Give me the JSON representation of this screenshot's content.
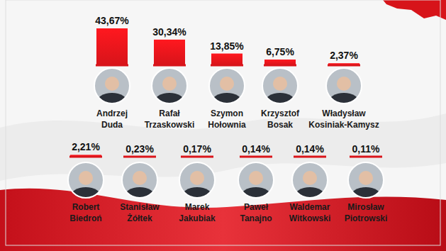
{
  "chart_data": {
    "type": "bar",
    "categories": [
      "Andrzej Duda",
      "Rafał Trzaskowski",
      "Szymon Hołownia",
      "Krzysztof Bosak",
      "Władysław Kosiniak-Kamysz",
      "Robert Biedroń",
      "Stanisław Żółtek",
      "Marek Jakubiak",
      "Paweł Tanajno",
      "Waldemar Witkowski",
      "Mirosław Piotrowski"
    ],
    "values": [
      43.67,
      30.34,
      13.85,
      6.75,
      2.37,
      2.21,
      0.23,
      0.17,
      0.14,
      0.14,
      0.11
    ],
    "value_labels": [
      "43,67%",
      "30,34%",
      "13,85%",
      "6,75%",
      "2,37%",
      "2,21%",
      "0,23%",
      "0,17%",
      "0,14%",
      "0,14%",
      "0,11%"
    ],
    "color": "#d7141a",
    "data_labels": true,
    "tick_labels": false
  }
}
